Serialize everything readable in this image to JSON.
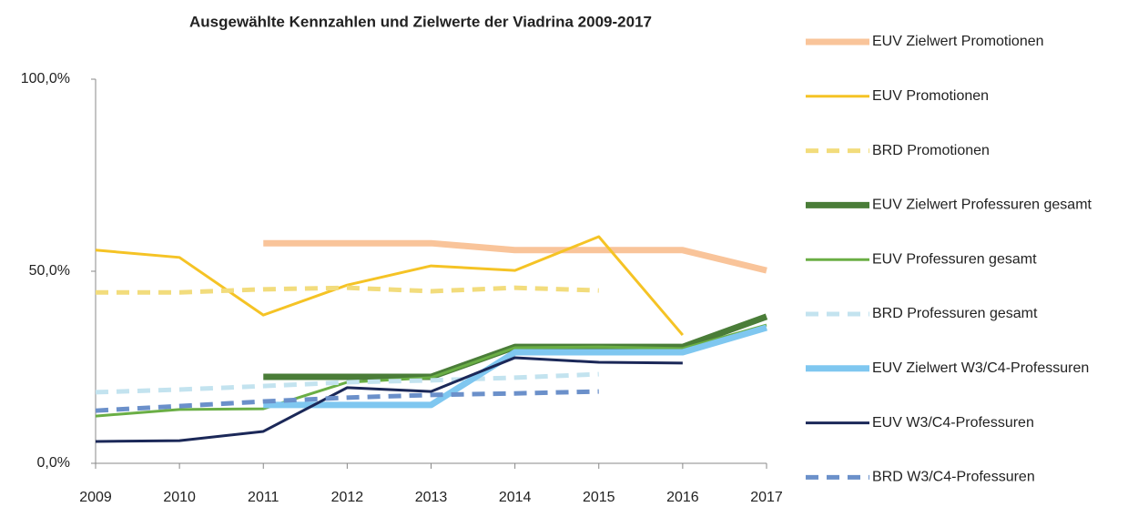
{
  "chart_data": {
    "type": "line",
    "title": "Ausgewählte Kennzahlen und Zielwerte der Viadrina 2009-2017",
    "categories": [
      "2009",
      "2010",
      "2011",
      "2012",
      "2013",
      "2014",
      "2015",
      "2016",
      "2017"
    ],
    "ylim": [
      0,
      100
    ],
    "yticks": [
      {
        "value": 0,
        "label": "0,0%"
      },
      {
        "value": 50,
        "label": "50,0%"
      },
      {
        "value": 100,
        "label": "100,0%"
      }
    ],
    "legend": "right",
    "series": [
      {
        "name": "EUV Zielwert Promotionen",
        "color": "#f9c49a",
        "style": "thick",
        "values": [
          null,
          null,
          57.3,
          57.3,
          57.3,
          55.5,
          55.5,
          55.5,
          50.2
        ]
      },
      {
        "name": "EUV Promotionen",
        "color": "#f5c325",
        "style": "solid",
        "values": [
          55.5,
          53.6,
          38.6,
          46.4,
          51.4,
          50.2,
          59.0,
          33.4,
          null
        ]
      },
      {
        "name": "BRD Promotionen",
        "color": "#f2dc7c",
        "style": "dashed",
        "values": [
          44.5,
          44.5,
          45.3,
          45.7,
          44.8,
          45.7,
          45.0,
          null,
          null
        ]
      },
      {
        "name": "EUV Zielwert Professuren gesamt",
        "color": "#4a7d38",
        "style": "thick",
        "values": [
          null,
          null,
          22.5,
          22.5,
          22.5,
          30.3,
          30.3,
          30.3,
          38.2
        ]
      },
      {
        "name": "EUV Professuren gesamt",
        "color": "#6aae45",
        "style": "solid",
        "values": [
          12.3,
          14.0,
          14.2,
          21.1,
          22.3,
          30.1,
          30.3,
          29.9,
          36.0
        ]
      },
      {
        "name": "BRD Professuren gesamt",
        "color": "#c3e3ef",
        "style": "dashed",
        "values": [
          18.5,
          19.2,
          20.1,
          21.1,
          21.6,
          22.3,
          23.2,
          null,
          null
        ]
      },
      {
        "name": "EUV Zielwert W3/C4-Professuren",
        "color": "#7fc7f0",
        "style": "thick",
        "values": [
          null,
          null,
          15.2,
          15.2,
          15.2,
          28.9,
          28.9,
          28.9,
          35.3
        ]
      },
      {
        "name": "EUV W3/C4-Professuren",
        "color": "#1b2858",
        "style": "solid",
        "values": [
          5.7,
          5.9,
          8.3,
          19.7,
          18.7,
          27.5,
          26.3,
          26.1,
          null
        ]
      },
      {
        "name": "BRD W3/C4-Professuren",
        "color": "#6b90ca",
        "style": "dashed",
        "values": [
          13.7,
          14.9,
          16.1,
          17.1,
          17.8,
          18.2,
          18.7,
          null,
          null
        ]
      }
    ]
  }
}
